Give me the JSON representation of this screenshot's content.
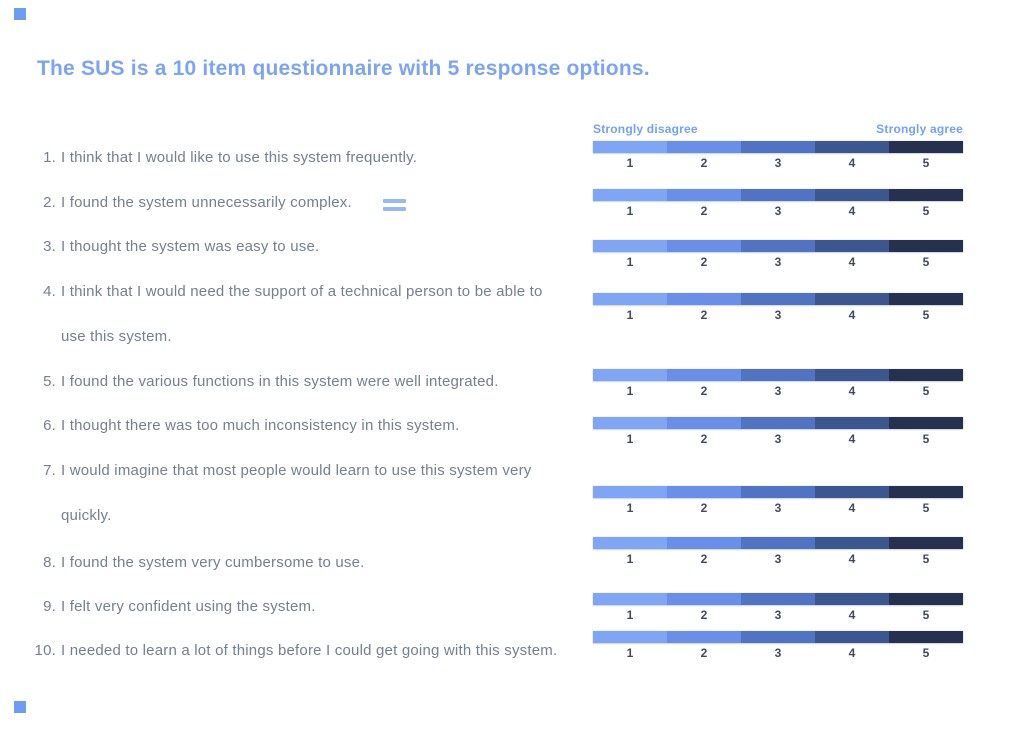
{
  "title": {
    "text": "The SUS is a 10 item questionnaire with 5 response options.",
    "color": "#7ba4f7"
  },
  "decor": {
    "equals_symbol": "=",
    "equals_color": "#96b7fa",
    "corner_square_color": "#6c9cf4"
  },
  "questionnaire": {
    "text_color": "#767f8d",
    "items": [
      {
        "num": "1.",
        "text": "I think that I would like to use this system frequently."
      },
      {
        "num": "2.",
        "text": "I found the system unnecessarily complex."
      },
      {
        "num": "3.",
        "text": "I thought the system was easy to use."
      },
      {
        "num": "4.",
        "text": "I think that I would need the support of a technical person to be able to\nuse this system."
      },
      {
        "num": "5.",
        "text": "I found the various functions in this system were well integrated."
      },
      {
        "num": "6.",
        "text": "I thought there was too much inconsistency in this system."
      },
      {
        "num": "7.",
        "text": "I would imagine that most people would learn to use this system very\nquickly."
      },
      {
        "num": "8.",
        "text": "I found the system very cumbersome to use."
      },
      {
        "num": "9.",
        "text": "I felt very confident using the system."
      },
      {
        "num": "10.",
        "text": "I needed to learn a lot of things before I could get going with this system."
      }
    ]
  },
  "scale": {
    "left_label": "Strongly disagree",
    "right_label": "Strongly agree",
    "options": [
      "1",
      "2",
      "3",
      "4",
      "5"
    ],
    "segment_colors": [
      "#7fa6f5",
      "#6a8fe8",
      "#5173c4",
      "#3c5690",
      "#263150"
    ],
    "label_color": "#74a0f8",
    "number_color": "#3e4a5e",
    "row_count": 10
  }
}
